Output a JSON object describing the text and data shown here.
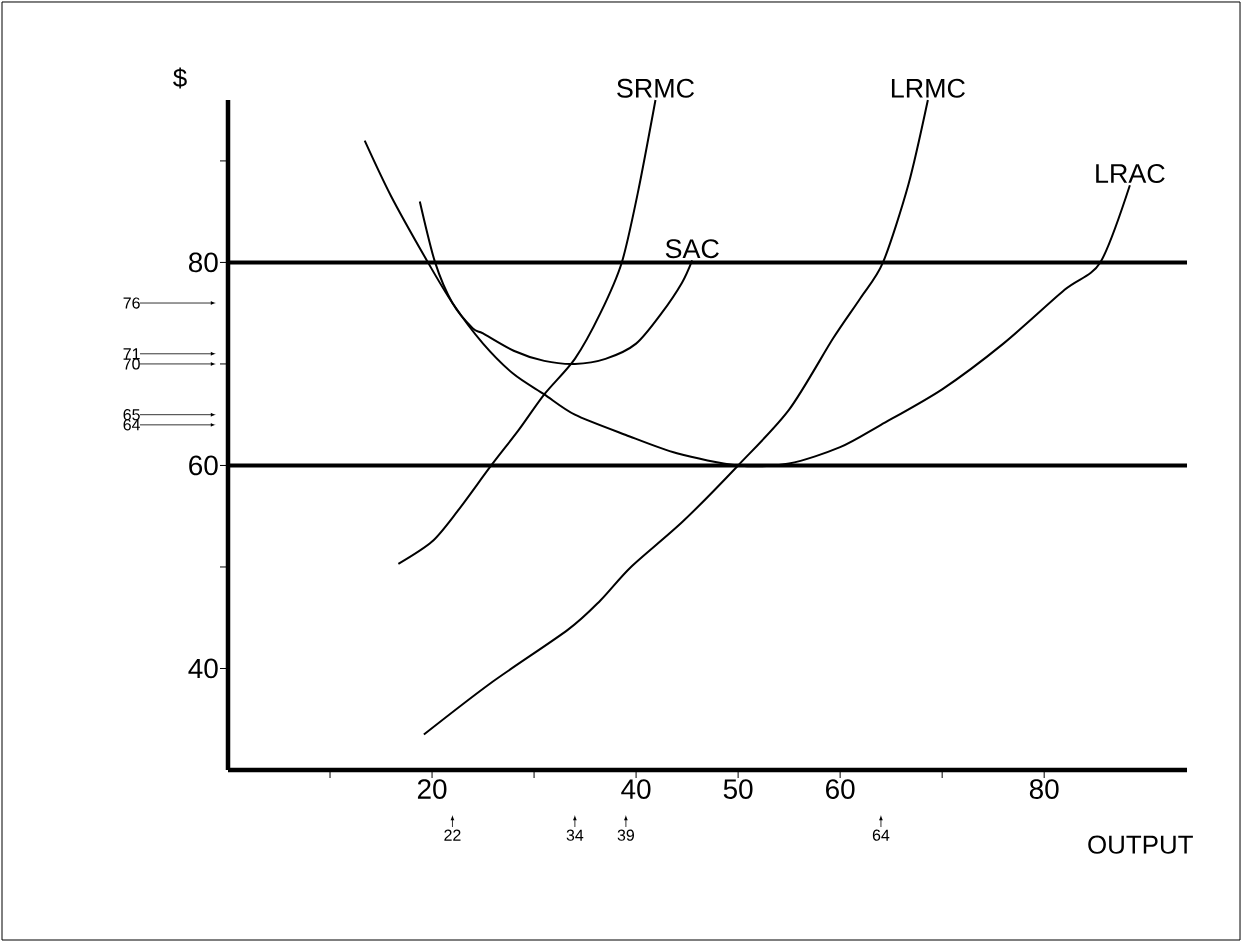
{
  "chart_data": {
    "type": "line",
    "xlabel": "OUTPUT",
    "ylabel": "$",
    "xlim": [
      0,
      94
    ],
    "ylim": [
      30,
      96
    ],
    "xticks": [
      {
        "value": 10,
        "label": null
      },
      20,
      {
        "value": 30,
        "label": null
      },
      40,
      50,
      60,
      {
        "value": 70,
        "label": null
      },
      80
    ],
    "yticks": [
      40,
      {
        "value": 50,
        "label": null
      },
      60,
      {
        "value": 70,
        "label": null
      },
      80,
      {
        "value": 90,
        "label": null
      }
    ],
    "x2lim": [
      0,
      94
    ],
    "x2ticks": [
      22,
      34,
      39,
      64
    ],
    "y2lim": [
      30,
      96
    ],
    "y2ticks": [
      64,
      65,
      70,
      71,
      76
    ],
    "grid": false,
    "legend": false,
    "marker": "none",
    "line_style": "solid",
    "ref_lines": [
      {
        "axis": "y",
        "value": 80,
        "color": "#000000"
      },
      {
        "axis": "y",
        "value": 60,
        "color": "#000000"
      }
    ],
    "series": [
      {
        "name": "SRMC",
        "color": "#000000",
        "x": [
          16.7,
          20,
          22.5,
          25.8,
          28.5,
          31,
          34,
          36.5,
          38.6,
          40.2,
          41.9
        ],
        "values": [
          50.3,
          52.5,
          55.5,
          60,
          63.5,
          67,
          70.5,
          75,
          80,
          87,
          96
        ]
      },
      {
        "name": "LRMC",
        "color": "#000000",
        "x": [
          19.2,
          25.8,
          33.3,
          36.5,
          39.5,
          44.6,
          50,
          55,
          59.3,
          62,
          64.2,
          66.7,
          68.6
        ],
        "values": [
          33.5,
          38.6,
          43.8,
          46.7,
          50,
          54.5,
          60,
          65.5,
          72.5,
          76.5,
          80,
          87.7,
          96
        ]
      },
      {
        "name": "LRAC",
        "color": "#000000",
        "x": [
          13.4,
          16,
          19.6,
          22,
          25,
          28,
          31,
          34,
          39,
          44,
          50,
          55,
          60,
          64,
          70,
          76,
          82,
          85.5,
          88.4
        ],
        "values": [
          92,
          86.5,
          80,
          76,
          72,
          69,
          67,
          65,
          63,
          61.2,
          60,
          60.2,
          61.8,
          64,
          67.5,
          72,
          77.3,
          80,
          87.6
        ]
      },
      {
        "name": "SAC",
        "color": "#000000",
        "x": [
          18.8,
          20.3,
          22,
          24,
          25,
          28,
          31,
          34,
          37,
          40,
          42.5,
          44.5,
          45.5
        ],
        "values": [
          86,
          80,
          76,
          73.5,
          73,
          71.3,
          70.3,
          70,
          70.5,
          72,
          75,
          78,
          80.2
        ]
      }
    ]
  }
}
